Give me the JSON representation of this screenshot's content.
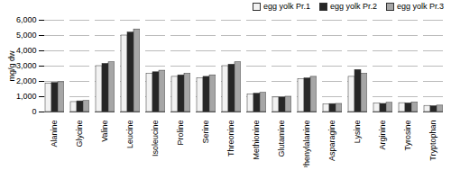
{
  "chart_data": {
    "type": "bar",
    "y_label": "mg/g dw",
    "categories": [
      "Alanine",
      "Glycine",
      "Valine",
      "Leucine",
      "Isoleucine",
      "Proline",
      "Serine",
      "Threonine",
      "Methionine",
      "Glutamine",
      "Phenylalanine",
      "Asparagine",
      "Lysine",
      "Arginine",
      "Tyrosine",
      "Tryptophan"
    ],
    "series": [
      {
        "name": "egg yolk Pr.1",
        "color": "#f2f2f2",
        "values": [
          1850,
          650,
          3000,
          5000,
          2500,
          2300,
          2200,
          3000,
          1150,
          950,
          2150,
          500,
          2300,
          550,
          580,
          400
        ]
      },
      {
        "name": "egg yolk Pr.2",
        "color": "#262626",
        "values": [
          1900,
          700,
          3150,
          5200,
          2600,
          2400,
          2300,
          3100,
          1200,
          950,
          2200,
          520,
          2750,
          530,
          570,
          380
        ]
      },
      {
        "name": "egg yolk Pr.3",
        "color": "#a6a6a6",
        "values": [
          1950,
          720,
          3250,
          5400,
          2700,
          2500,
          2400,
          3250,
          1250,
          1000,
          2300,
          530,
          2500,
          600,
          620,
          420
        ]
      }
    ],
    "ylim": [
      0,
      6000
    ],
    "yticks": [
      0,
      {
        "value": 1000,
        "label": "1,000"
      },
      {
        "value": 2000,
        "label": "2,000"
      },
      {
        "value": 3000,
        "label": "3,000"
      },
      {
        "value": 4000,
        "label": "4,000"
      },
      {
        "value": 5000,
        "label": "5,000"
      },
      {
        "value": 6000,
        "label": "6,000"
      }
    ],
    "grid": true,
    "legend": "top-right"
  }
}
